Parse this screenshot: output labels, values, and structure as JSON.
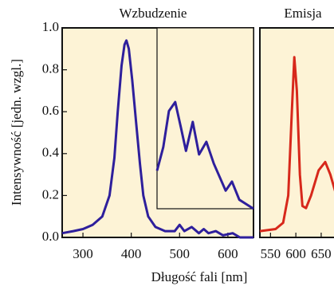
{
  "chart_data": [
    {
      "type": "line",
      "title": "Wzbudzenie",
      "ylabel": "Intensywność  [jedn. wzgl.]",
      "xlabel": "Długość fali  [nm]",
      "xlim": [
        257,
        653
      ],
      "xticks": [
        300,
        400,
        500,
        600
      ],
      "ylim": [
        0,
        1
      ],
      "yticks": [
        {
          "value": 0,
          "label": "0.0"
        },
        0.2,
        0.4,
        0.6,
        0.8,
        {
          "value": 1,
          "label": "1.0"
        }
      ],
      "x": [
        257,
        280,
        300,
        320,
        340,
        355,
        365,
        372,
        380,
        386,
        390,
        395,
        402,
        410,
        418,
        425,
        435,
        450,
        470,
        490,
        500,
        510,
        525,
        540,
        550,
        560,
        575,
        590,
        610,
        625,
        653
      ],
      "series": [
        {
          "color": "#2e1f9c",
          "values": [
            0.02,
            0.03,
            0.04,
            0.06,
            0.1,
            0.2,
            0.38,
            0.6,
            0.82,
            0.92,
            0.94,
            0.9,
            0.75,
            0.55,
            0.35,
            0.2,
            0.1,
            0.05,
            0.03,
            0.03,
            0.06,
            0.03,
            0.05,
            0.02,
            0.04,
            0.02,
            0.03,
            0.01,
            0.02,
            0.0,
            0.0
          ]
        }
      ]
    },
    {
      "type": "line",
      "xlim": [
        470,
        640
      ],
      "ylim": [
        0,
        1
      ],
      "x": [
        470,
        481,
        491,
        502,
        512,
        521,
        533,
        544,
        557,
        570,
        591,
        602,
        615,
        640
      ],
      "series": [
        {
          "color": "#2e1f9c",
          "values": [
            0.21,
            0.34,
            0.54,
            0.59,
            0.45,
            0.32,
            0.48,
            0.3,
            0.37,
            0.25,
            0.1,
            0.15,
            0.05,
            0.0
          ]
        }
      ]
    },
    {
      "type": "line",
      "title": "Emisja",
      "xlim": [
        529,
        680
      ],
      "xticks": [
        550,
        600,
        650
      ],
      "ylim": [
        0,
        1
      ],
      "x": [
        529,
        560,
        575,
        585,
        592,
        597,
        602,
        608,
        613,
        620,
        630,
        645,
        658,
        668,
        680
      ],
      "series": [
        {
          "color": "#d7281b",
          "values": [
            0.03,
            0.04,
            0.07,
            0.2,
            0.6,
            0.86,
            0.7,
            0.3,
            0.15,
            0.14,
            0.2,
            0.32,
            0.36,
            0.3,
            0.2
          ]
        }
      ]
    }
  ]
}
